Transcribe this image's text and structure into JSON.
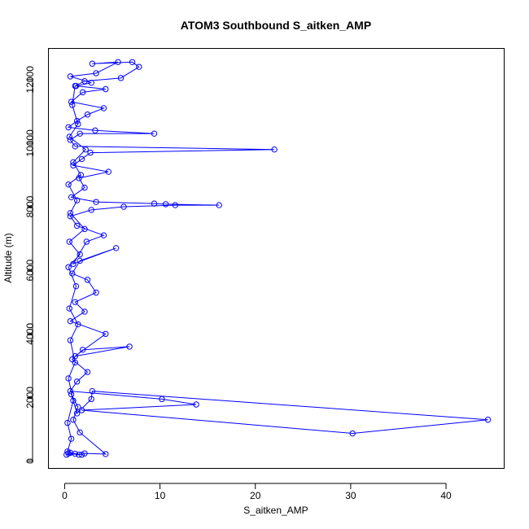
{
  "chart_data": {
    "type": "scatter",
    "title": "ATOM3 Southbound S_aitken_AMP",
    "xlabel": "S_aitken_AMP",
    "ylabel": "Altitude (m)",
    "xlim": [
      -1.7,
      46.1
    ],
    "ylim": [
      -230,
      12980
    ],
    "xticks": [
      0,
      10,
      20,
      30,
      40
    ],
    "yticks": [
      0,
      2000,
      4000,
      6000,
      8000,
      10000,
      12000
    ],
    "series": [
      {
        "color": "#0000ff",
        "marker": "open-circle",
        "connected": true,
        "points": [
          [
            0.2,
            200
          ],
          [
            1.1,
            230
          ],
          [
            0.6,
            260
          ],
          [
            1.8,
            200
          ],
          [
            2.1,
            240
          ],
          [
            4.3,
            220
          ],
          [
            1.6,
            900
          ],
          [
            0.9,
            1300
          ],
          [
            1.4,
            1700
          ],
          [
            0.7,
            2100
          ],
          [
            1.3,
            1500
          ],
          [
            2.8,
            1950
          ],
          [
            2.9,
            2200
          ],
          [
            44.4,
            1300
          ],
          [
            30.2,
            870
          ],
          [
            1.8,
            1600
          ],
          [
            13.8,
            1780
          ],
          [
            10.2,
            1950
          ],
          [
            0.6,
            2200
          ],
          [
            1.3,
            2500
          ],
          [
            2.4,
            2800
          ],
          [
            0.8,
            3200
          ],
          [
            1.9,
            3500
          ],
          [
            6.8,
            3600
          ],
          [
            1.1,
            3300
          ],
          [
            4.3,
            4000
          ],
          [
            0.6,
            4400
          ],
          [
            2.1,
            4700
          ],
          [
            1.1,
            5000
          ],
          [
            3.3,
            5300
          ],
          [
            2.4,
            5700
          ],
          [
            0.8,
            5900
          ],
          [
            1.6,
            6300
          ],
          [
            5.4,
            6700
          ],
          [
            0.9,
            6200
          ],
          [
            2.3,
            6900
          ],
          [
            4.1,
            7100
          ],
          [
            1.3,
            7400
          ],
          [
            0.6,
            7700
          ],
          [
            2.8,
            7900
          ],
          [
            6.2,
            8000
          ],
          [
            11.6,
            8050
          ],
          [
            16.2,
            8050
          ],
          [
            10.6,
            8080
          ],
          [
            9.4,
            8100
          ],
          [
            3.3,
            8150
          ],
          [
            0.7,
            8300
          ],
          [
            2.1,
            8600
          ],
          [
            1.5,
            8900
          ],
          [
            4.6,
            9100
          ],
          [
            0.9,
            9300
          ],
          [
            1.8,
            9500
          ],
          [
            2.7,
            9700
          ],
          [
            22.0,
            9800
          ],
          [
            1.1,
            9900
          ],
          [
            0.6,
            10100
          ],
          [
            1.6,
            10300
          ],
          [
            9.4,
            10300
          ],
          [
            3.2,
            10400
          ],
          [
            0.4,
            10500
          ],
          [
            1.3,
            10700
          ],
          [
            2.4,
            10900
          ],
          [
            4.1,
            11100
          ],
          [
            0.7,
            11300
          ],
          [
            1.9,
            11600
          ],
          [
            4.3,
            11700
          ],
          [
            1.2,
            11800
          ],
          [
            2.8,
            11900
          ],
          [
            0.6,
            12100
          ],
          [
            3.3,
            12200
          ],
          [
            5.6,
            12550
          ],
          [
            2.9,
            12500
          ],
          [
            7.1,
            12550
          ],
          [
            7.8,
            12400
          ],
          [
            5.9,
            12050
          ],
          [
            2.1,
            11950
          ],
          [
            1.1,
            11800
          ],
          [
            0.8,
            11200
          ],
          [
            1.4,
            10600
          ],
          [
            0.5,
            10200
          ],
          [
            2.2,
            9800
          ],
          [
            0.9,
            9400
          ],
          [
            1.7,
            9000
          ],
          [
            0.4,
            8700
          ],
          [
            1.3,
            8200
          ],
          [
            0.6,
            7800
          ],
          [
            2.1,
            7300
          ],
          [
            0.5,
            6900
          ],
          [
            1.6,
            6500
          ],
          [
            0.4,
            6100
          ],
          [
            1.2,
            5500
          ],
          [
            0.5,
            4800
          ],
          [
            1.4,
            4300
          ],
          [
            0.6,
            3800
          ],
          [
            1.1,
            3100
          ],
          [
            0.4,
            2600
          ],
          [
            0.9,
            1900
          ],
          [
            0.3,
            1200
          ],
          [
            0.7,
            700
          ],
          [
            0.3,
            300
          ],
          [
            1.5,
            200
          ],
          [
            0.4,
            240
          ]
        ]
      }
    ],
    "grid": false,
    "legend": "none"
  }
}
